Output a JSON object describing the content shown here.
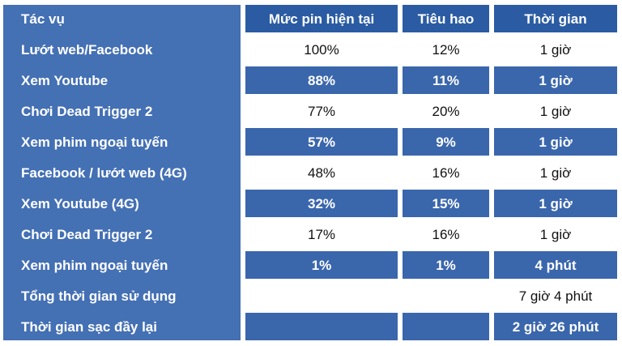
{
  "colors": {
    "left_column": "#4470b4",
    "header": "#2b5ca3",
    "row_blue": "#3a66ac",
    "row_white": "#ffffff",
    "text_light": "#ffffff",
    "text_dark": "#111111"
  },
  "chart_data": {
    "type": "table",
    "columns": [
      "Tác vụ",
      "Mức pin hiện tại",
      "Tiêu hao",
      "Thời gian"
    ],
    "rows": [
      [
        "Lướt web/Facebook",
        "100%",
        "12%",
        "1 giờ"
      ],
      [
        "Xem Youtube",
        "88%",
        "11%",
        "1 giờ"
      ],
      [
        "Chơi Dead Trigger 2",
        "77%",
        "20%",
        "1 giờ"
      ],
      [
        "Xem phim ngoại tuyến",
        "57%",
        "9%",
        "1 giờ"
      ],
      [
        "Facebook / lướt web (4G)",
        "48%",
        "16%",
        "1 giờ"
      ],
      [
        "Xem Youtube (4G)",
        "32%",
        "15%",
        "1 giờ"
      ],
      [
        "Chơi Dead Trigger 2",
        "17%",
        "16%",
        "1 giờ"
      ],
      [
        "Xem phim ngoại tuyến",
        "1%",
        "1%",
        "4 phút"
      ],
      [
        "Tổng thời gian sử dụng",
        "",
        "",
        "7 giờ 4 phút"
      ],
      [
        "Thời gian sạc đầy lại",
        "",
        "",
        "2 giờ 26 phút"
      ]
    ]
  }
}
